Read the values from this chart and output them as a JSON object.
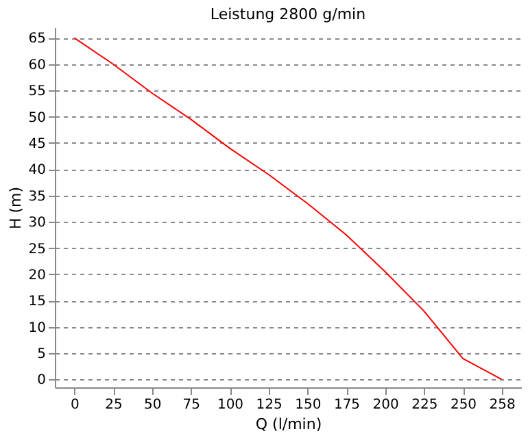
{
  "chart_data": {
    "type": "line",
    "title": "Leistung  2800 g/min",
    "xlabel": "Q (l/min)",
    "ylabel": "H (m)",
    "categories": [
      "0",
      "25",
      "50",
      "75",
      "100",
      "125",
      "150",
      "175",
      "200",
      "225",
      "250",
      "258"
    ],
    "series": [
      {
        "color": "#ff0000",
        "values": [
          65,
          60,
          54.5,
          49.5,
          44,
          39,
          33.5,
          27.5,
          20.5,
          13,
          4,
          0
        ]
      }
    ],
    "ylim": [
      -1.5,
      67
    ],
    "yticks": [
      0,
      5,
      10,
      15,
      20,
      25,
      30,
      35,
      40,
      45,
      50,
      55,
      60,
      65
    ],
    "grid": "y",
    "marker": "none",
    "line_style": "solid"
  }
}
